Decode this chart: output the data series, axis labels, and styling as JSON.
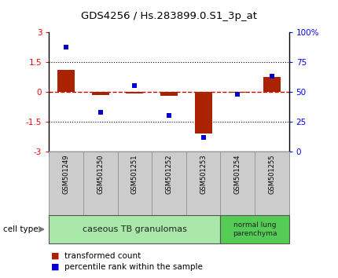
{
  "title": "GDS4256 / Hs.283899.0.S1_3p_at",
  "samples": [
    "GSM501249",
    "GSM501250",
    "GSM501251",
    "GSM501252",
    "GSM501253",
    "GSM501254",
    "GSM501255"
  ],
  "transformed_count": [
    1.1,
    -0.15,
    -0.1,
    -0.2,
    -2.1,
    -0.05,
    0.75
  ],
  "percentile_rank": [
    87,
    33,
    55,
    30,
    12,
    48,
    63
  ],
  "ylim_left": [
    -3,
    3
  ],
  "ylim_right": [
    0,
    100
  ],
  "yticks_left": [
    -3,
    -1.5,
    0,
    1.5,
    3
  ],
  "yticks_right": [
    0,
    25,
    50,
    75,
    100
  ],
  "ytick_labels_left": [
    "-3",
    "-1.5",
    "0",
    "1.5",
    "3"
  ],
  "ytick_labels_right": [
    "0",
    "25",
    "50",
    "75",
    "100%"
  ],
  "hlines": [
    1.5,
    -1.5
  ],
  "bar_color": "#aa2200",
  "point_color": "#0000cc",
  "dashed_line_color": "#cc0000",
  "group1_label": "caseous TB granulomas",
  "group2_label": "normal lung\nparenchyma",
  "group1_n": 5,
  "group2_n": 2,
  "cell_type_label": "cell type",
  "legend_bar_label": "transformed count",
  "legend_point_label": "percentile rank within the sample",
  "group1_color": "#aae8aa",
  "group2_color": "#55cc55",
  "sample_box_color": "#cccccc",
  "bar_width": 0.5
}
